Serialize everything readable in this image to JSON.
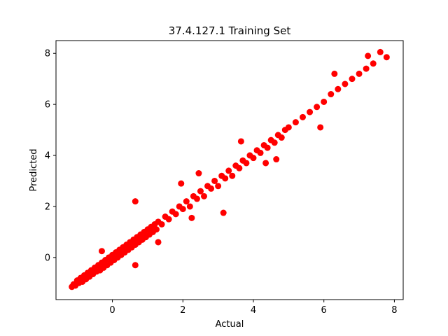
{
  "chart_data": {
    "type": "scatter",
    "title": "37.4.127.1 Training Set",
    "xlabel": "Actual",
    "ylabel": "Predicted",
    "xlim": [
      -1.6,
      8.25
    ],
    "ylim": [
      -1.65,
      8.5
    ],
    "xticks": [
      0,
      2,
      4,
      6,
      8
    ],
    "yticks": [
      0,
      2,
      4,
      6,
      8
    ],
    "grid": false,
    "legend": "none",
    "point_color": "#ff0000",
    "series": [
      {
        "points": [
          [
            -1.15,
            -1.15
          ],
          [
            -1.1,
            -1.05
          ],
          [
            -1.05,
            -1.1
          ],
          [
            -1.0,
            -0.9
          ],
          [
            -0.95,
            -1.0
          ],
          [
            -0.9,
            -0.8
          ],
          [
            -0.85,
            -0.95
          ],
          [
            -0.8,
            -0.7
          ],
          [
            -0.75,
            -0.85
          ],
          [
            -0.7,
            -0.6
          ],
          [
            -0.65,
            -0.75
          ],
          [
            -0.6,
            -0.5
          ],
          [
            -0.55,
            -0.65
          ],
          [
            -0.5,
            -0.4
          ],
          [
            -0.45,
            -0.55
          ],
          [
            -0.4,
            -0.3
          ],
          [
            -0.35,
            -0.5
          ],
          [
            -0.3,
            -0.2
          ],
          [
            -0.25,
            -0.4
          ],
          [
            -0.2,
            -0.1
          ],
          [
            -0.15,
            -0.3
          ],
          [
            -0.1,
            0.0
          ],
          [
            -0.05,
            -0.2
          ],
          [
            0.0,
            0.1
          ],
          [
            0.05,
            -0.1
          ],
          [
            0.1,
            0.2
          ],
          [
            0.15,
            0.0
          ],
          [
            0.2,
            0.3
          ],
          [
            0.25,
            0.1
          ],
          [
            0.3,
            0.4
          ],
          [
            0.35,
            0.2
          ],
          [
            0.4,
            0.5
          ],
          [
            0.45,
            0.3
          ],
          [
            0.5,
            0.6
          ],
          [
            0.55,
            0.4
          ],
          [
            0.6,
            0.7
          ],
          [
            0.65,
            0.5
          ],
          [
            0.7,
            0.8
          ],
          [
            0.75,
            0.6
          ],
          [
            0.8,
            0.9
          ],
          [
            0.85,
            0.7
          ],
          [
            0.9,
            1.0
          ],
          [
            0.95,
            0.8
          ],
          [
            1.0,
            1.1
          ],
          [
            1.05,
            0.9
          ],
          [
            1.1,
            1.2
          ],
          [
            1.15,
            1.0
          ],
          [
            1.2,
            1.3
          ],
          [
            1.25,
            1.1
          ],
          [
            1.3,
            1.4
          ],
          [
            1.4,
            1.3
          ],
          [
            1.5,
            1.6
          ],
          [
            1.6,
            1.5
          ],
          [
            1.7,
            1.8
          ],
          [
            1.8,
            1.7
          ],
          [
            1.9,
            2.0
          ],
          [
            2.0,
            1.9
          ],
          [
            2.1,
            2.2
          ],
          [
            2.2,
            2.0
          ],
          [
            2.3,
            2.4
          ],
          [
            2.4,
            2.3
          ],
          [
            2.5,
            2.6
          ],
          [
            2.6,
            2.4
          ],
          [
            2.7,
            2.8
          ],
          [
            2.8,
            2.7
          ],
          [
            2.9,
            3.0
          ],
          [
            3.0,
            2.8
          ],
          [
            3.1,
            3.2
          ],
          [
            3.2,
            3.1
          ],
          [
            3.3,
            3.4
          ],
          [
            3.4,
            3.2
          ],
          [
            3.5,
            3.6
          ],
          [
            3.6,
            3.5
          ],
          [
            3.7,
            3.8
          ],
          [
            3.8,
            3.7
          ],
          [
            3.9,
            4.0
          ],
          [
            4.0,
            3.9
          ],
          [
            4.1,
            4.2
          ],
          [
            4.2,
            4.1
          ],
          [
            4.3,
            4.4
          ],
          [
            4.4,
            4.3
          ],
          [
            4.5,
            4.6
          ],
          [
            4.6,
            4.5
          ],
          [
            4.7,
            4.8
          ],
          [
            4.8,
            4.7
          ],
          [
            4.9,
            5.0
          ],
          [
            5.0,
            5.1
          ],
          [
            5.2,
            5.3
          ],
          [
            5.4,
            5.5
          ],
          [
            5.6,
            5.7
          ],
          [
            5.8,
            5.9
          ],
          [
            6.0,
            6.1
          ],
          [
            6.2,
            6.4
          ],
          [
            6.4,
            6.6
          ],
          [
            6.6,
            6.8
          ],
          [
            6.8,
            7.0
          ],
          [
            7.0,
            7.2
          ],
          [
            7.2,
            7.4
          ],
          [
            7.4,
            7.6
          ],
          [
            7.6,
            8.05
          ],
          [
            7.78,
            7.85
          ],
          [
            7.25,
            7.9
          ],
          [
            6.3,
            7.2
          ],
          [
            5.9,
            5.1
          ],
          [
            4.65,
            3.85
          ],
          [
            0.65,
            -0.3
          ],
          [
            0.65,
            2.2
          ],
          [
            3.15,
            1.75
          ],
          [
            2.45,
            3.3
          ],
          [
            3.65,
            4.55
          ],
          [
            1.3,
            0.6
          ],
          [
            -0.3,
            0.25
          ],
          [
            1.95,
            2.9
          ],
          [
            2.25,
            1.55
          ],
          [
            4.35,
            3.7
          ]
        ]
      }
    ]
  }
}
